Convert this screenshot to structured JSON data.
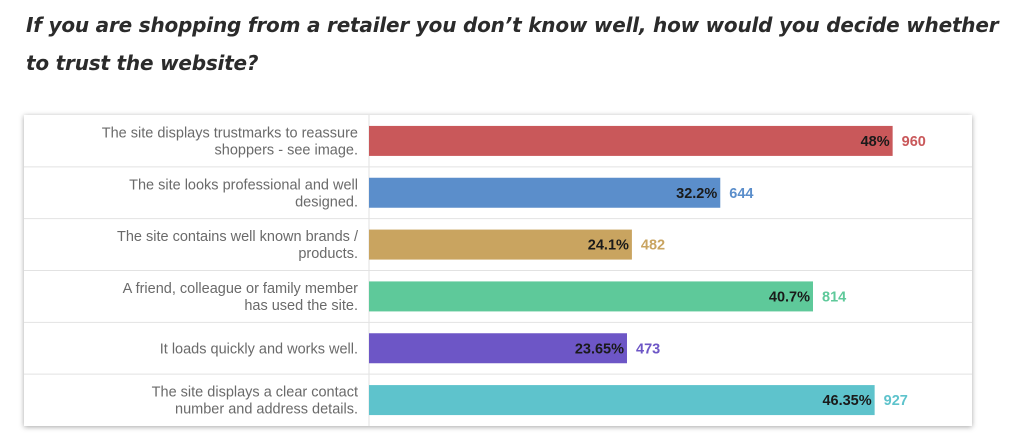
{
  "question": "If you are shopping from a retailer you don’t know well, how would you decide whether to trust the website?",
  "chart_data": {
    "type": "bar",
    "orientation": "horizontal",
    "title": "If you are shopping from a retailer you don’t know well, how would you decide whether to trust the website?",
    "grid": true,
    "categories": [
      [
        "The site displays trustmarks to reassure",
        "shoppers - see image."
      ],
      [
        "The site looks professional and well",
        "designed."
      ],
      [
        "The site contains well known brands /",
        "products."
      ],
      [
        "A friend, colleague or family member",
        "has used the site."
      ],
      [
        "It loads quickly and works well."
      ],
      [
        "The site displays a clear contact",
        "number and address details."
      ]
    ],
    "values": [
      48,
      32.2,
      24.1,
      40.7,
      23.65,
      46.35
    ],
    "value_labels": [
      "48%",
      "32.2%",
      "24.1%",
      "40.7%",
      "23.65%",
      "46.35%"
    ],
    "counts": [
      960,
      644,
      482,
      814,
      473,
      927
    ],
    "count_labels": [
      "960",
      "644",
      "482",
      "814",
      "473",
      "927"
    ],
    "xlim": [
      0,
      55
    ],
    "colors": [
      "#c9585a",
      "#5b8ecb",
      "#c9a460",
      "#5ec99a",
      "#6d56c6",
      "#5ec3cc"
    ],
    "count_colors": [
      "#c9585a",
      "#5b8ecb",
      "#c9a460",
      "#5ec99a",
      "#6d56c6",
      "#5ec3cc"
    ]
  }
}
